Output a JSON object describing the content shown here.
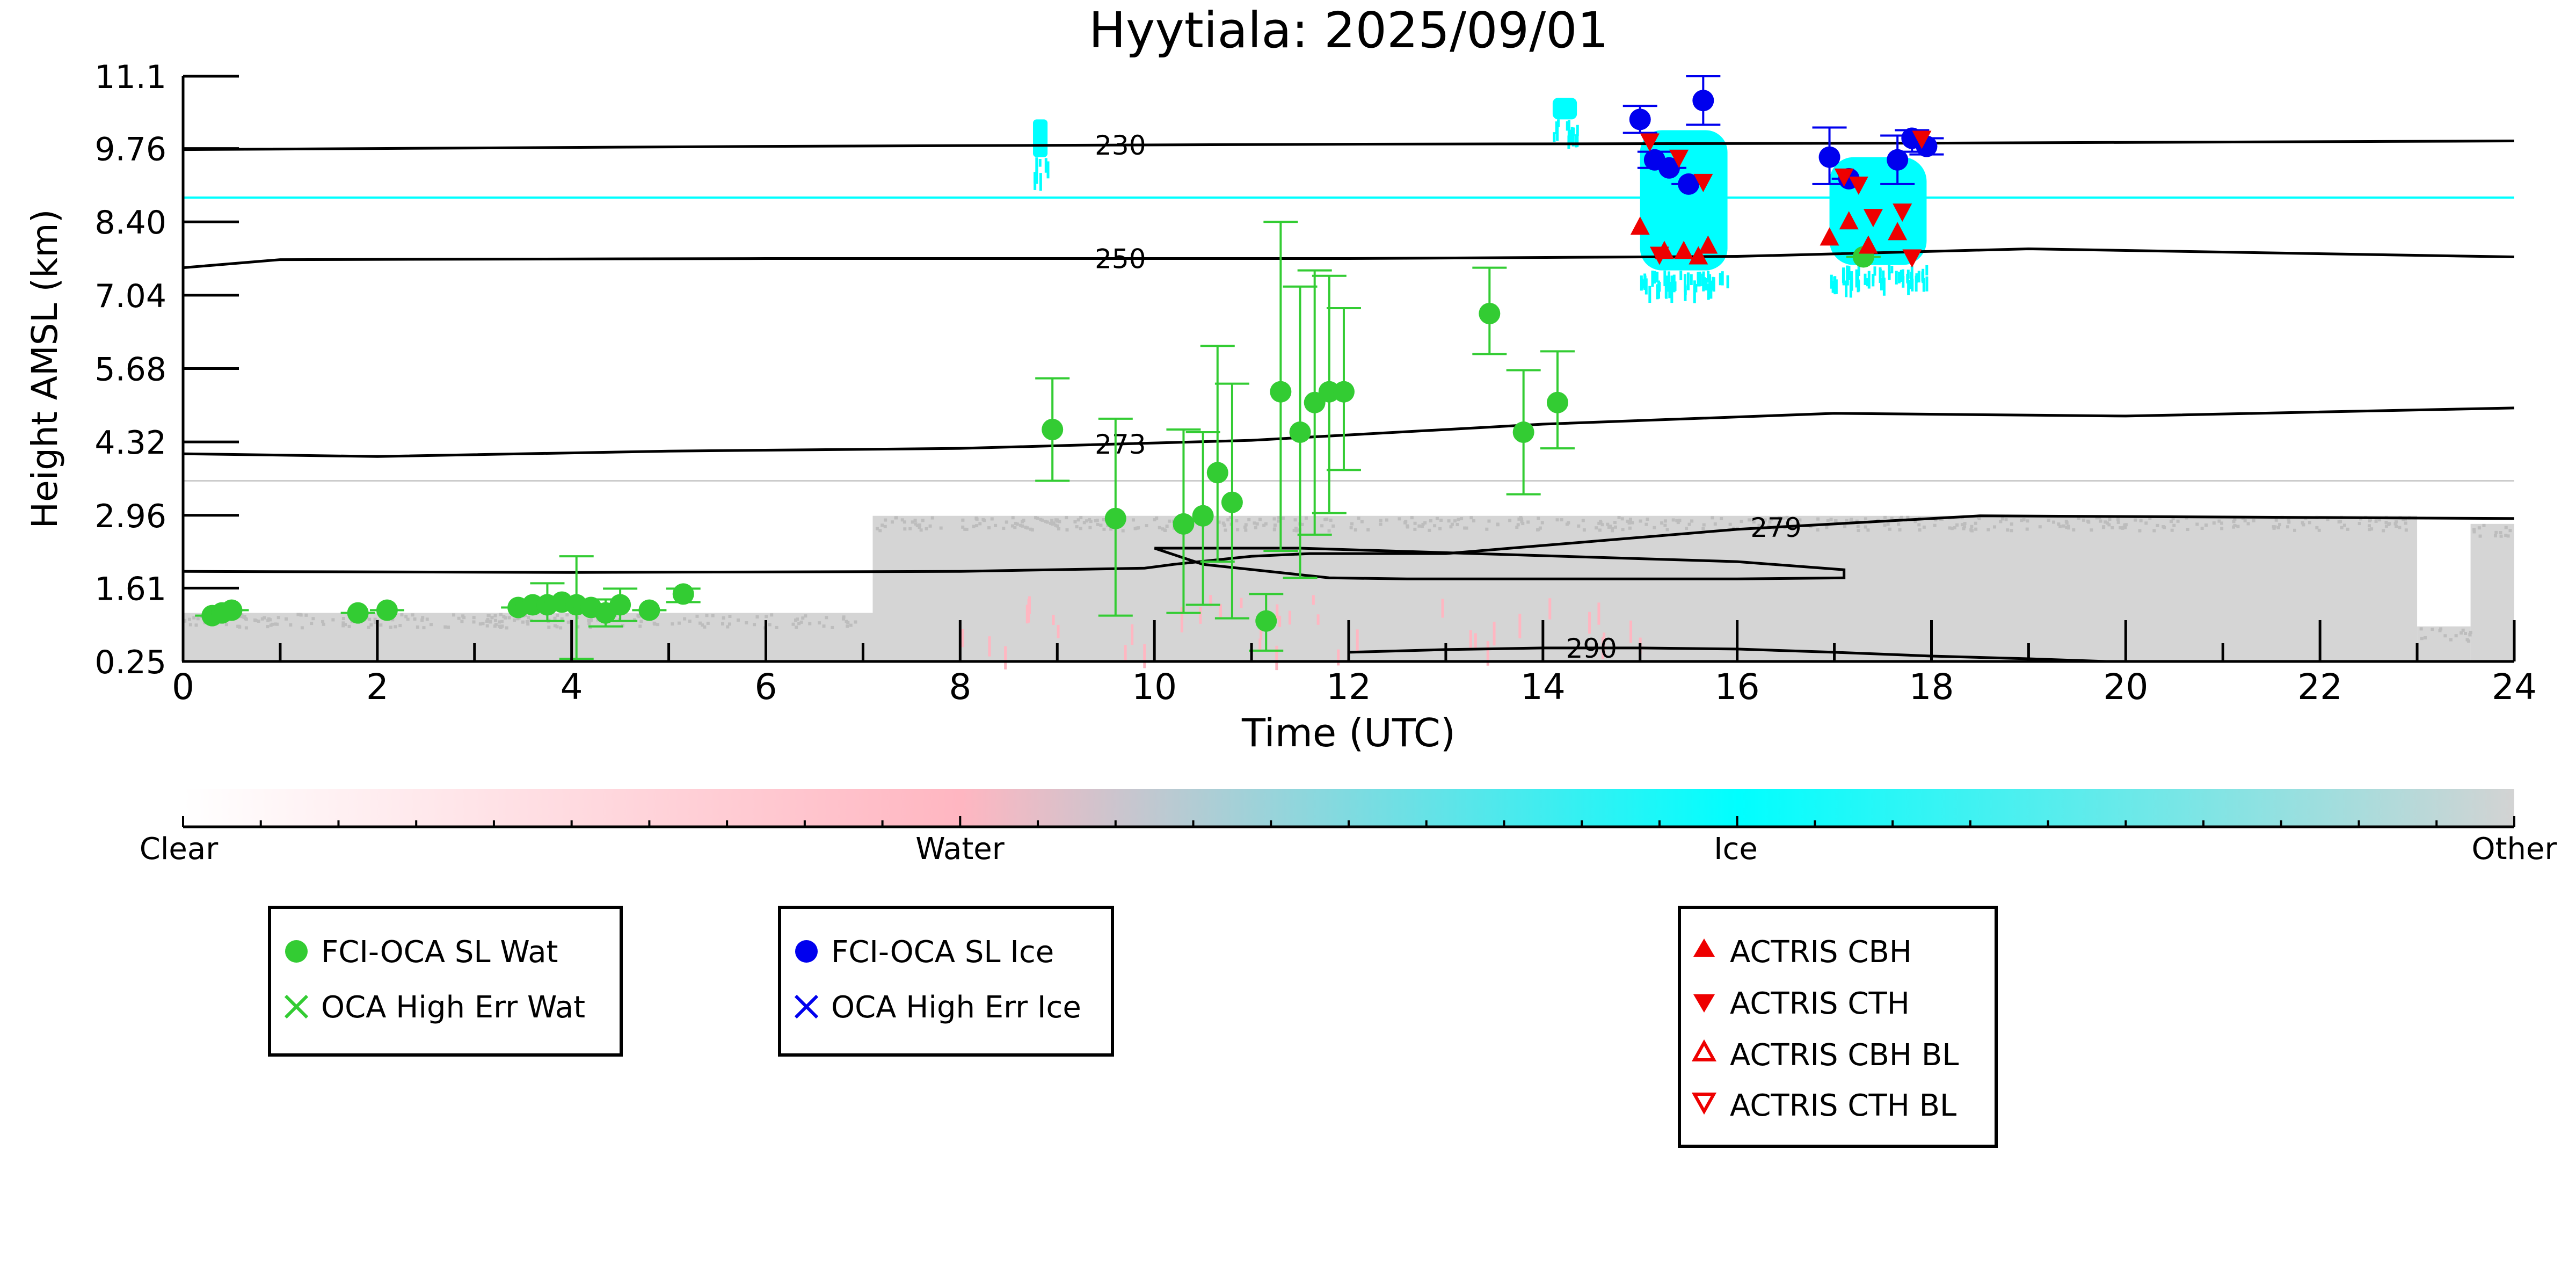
{
  "chart_data": {
    "type": "scatter",
    "title": "Hyytiala: 2025/09/01",
    "xlabel": "Time (UTC)",
    "ylabel": "Height AMSL (km)",
    "xlim": [
      0,
      24
    ],
    "ylim": [
      0.25,
      11.1
    ],
    "xticks": [
      "0",
      "2",
      "4",
      "6",
      "8",
      "10",
      "12",
      "14",
      "16",
      "18",
      "20",
      "22",
      "24"
    ],
    "yticks": [
      "0.25",
      "1.61",
      "2.96",
      "4.32",
      "5.68",
      "7.04",
      "8.40",
      "9.76",
      "11.1"
    ],
    "grid": false,
    "colorbar": {
      "labels": [
        "Clear",
        "Water",
        "Ice",
        "Other"
      ],
      "colors": [
        "#ffffff",
        "#ffb6c1",
        "#00ffff",
        "#d3d3d3"
      ]
    },
    "colors": {
      "water": "#33cc33",
      "ice": "#0000ee",
      "actris": "#ee0000",
      "cloud_ice": "#00ffff",
      "cloud_water": "#ffb6c1",
      "cloud_other": "#d3d3d3",
      "contour": "#000000"
    },
    "legends": [
      {
        "entries": [
          {
            "label": "FCI-OCA SL Wat",
            "marker": "circle-filled",
            "color": "#33cc33"
          },
          {
            "label": "OCA High Err Wat",
            "marker": "x",
            "color": "#33cc33"
          }
        ]
      },
      {
        "entries": [
          {
            "label": "FCI-OCA SL Ice",
            "marker": "circle-filled",
            "color": "#0000ee"
          },
          {
            "label": "OCA High Err Ice",
            "marker": "x",
            "color": "#0000ee"
          }
        ]
      },
      {
        "entries": [
          {
            "label": "ACTRIS CBH",
            "marker": "triangle-up-filled",
            "color": "#ee0000"
          },
          {
            "label": "ACTRIS CTH",
            "marker": "triangle-down-filled",
            "color": "#ee0000"
          },
          {
            "label": "ACTRIS CBH BL",
            "marker": "triangle-up-open",
            "color": "#ee0000"
          },
          {
            "label": "ACTRIS CTH BL",
            "marker": "triangle-down-open",
            "color": "#ee0000"
          }
        ]
      }
    ],
    "series": [
      {
        "name": "FCI-OCA SL Wat",
        "marker": "circle-filled",
        "points": [
          {
            "x": 0.3,
            "y": 1.1,
            "lo": 1.1,
            "hi": 1.1
          },
          {
            "x": 0.4,
            "y": 1.15,
            "lo": 1.15,
            "hi": 1.15
          },
          {
            "x": 0.5,
            "y": 1.2,
            "lo": 1.2,
            "hi": 1.2
          },
          {
            "x": 1.8,
            "y": 1.15,
            "lo": 1.15,
            "hi": 1.15
          },
          {
            "x": 2.1,
            "y": 1.2,
            "lo": 1.2,
            "hi": 1.2
          },
          {
            "x": 3.45,
            "y": 1.25,
            "lo": 1.25,
            "hi": 1.25
          },
          {
            "x": 3.6,
            "y": 1.3,
            "lo": 1.3,
            "hi": 1.3
          },
          {
            "x": 3.75,
            "y": 1.3,
            "lo": 1.0,
            "hi": 1.7
          },
          {
            "x": 3.9,
            "y": 1.35,
            "lo": 1.35,
            "hi": 1.35
          },
          {
            "x": 4.05,
            "y": 1.3,
            "lo": 0.3,
            "hi": 2.2
          },
          {
            "x": 4.2,
            "y": 1.25,
            "lo": 1.25,
            "hi": 1.25
          },
          {
            "x": 4.35,
            "y": 1.15,
            "lo": 0.9,
            "hi": 1.4
          },
          {
            "x": 4.5,
            "y": 1.3,
            "lo": 1.0,
            "hi": 1.6
          },
          {
            "x": 4.8,
            "y": 1.2,
            "lo": 1.2,
            "hi": 1.2
          },
          {
            "x": 5.15,
            "y": 1.5,
            "lo": 1.35,
            "hi": 1.6
          },
          {
            "x": 8.95,
            "y": 4.55,
            "lo": 3.6,
            "hi": 5.5
          },
          {
            "x": 9.6,
            "y": 2.9,
            "lo": 1.1,
            "hi": 4.75
          },
          {
            "x": 10.3,
            "y": 2.8,
            "lo": 1.15,
            "hi": 4.55
          },
          {
            "x": 10.5,
            "y": 2.95,
            "lo": 1.3,
            "hi": 4.5
          },
          {
            "x": 10.65,
            "y": 3.75,
            "lo": 2.1,
            "hi": 6.1
          },
          {
            "x": 10.8,
            "y": 3.2,
            "lo": 1.05,
            "hi": 5.4
          },
          {
            "x": 11.15,
            "y": 1.0,
            "lo": 0.45,
            "hi": 1.5
          },
          {
            "x": 11.3,
            "y": 5.25,
            "lo": 2.3,
            "hi": 8.4
          },
          {
            "x": 11.5,
            "y": 4.5,
            "lo": 1.8,
            "hi": 7.2
          },
          {
            "x": 11.65,
            "y": 5.05,
            "lo": 2.6,
            "hi": 7.5
          },
          {
            "x": 11.8,
            "y": 5.25,
            "lo": 3.0,
            "hi": 7.4
          },
          {
            "x": 11.95,
            "y": 5.25,
            "lo": 3.8,
            "hi": 6.8
          },
          {
            "x": 13.45,
            "y": 6.7,
            "lo": 5.95,
            "hi": 7.55
          },
          {
            "x": 13.8,
            "y": 4.5,
            "lo": 3.35,
            "hi": 5.65
          },
          {
            "x": 14.15,
            "y": 5.05,
            "lo": 4.2,
            "hi": 6.0
          },
          {
            "x": 17.3,
            "y": 7.75,
            "lo": 7.75,
            "hi": 7.75
          }
        ]
      },
      {
        "name": "FCI-OCA SL Ice",
        "marker": "circle-filled",
        "points": [
          {
            "x": 15.0,
            "y": 10.3,
            "lo": 10.05,
            "hi": 10.55
          },
          {
            "x": 15.15,
            "y": 9.55,
            "lo": 9.4,
            "hi": 9.7
          },
          {
            "x": 15.3,
            "y": 9.4,
            "lo": 9.4,
            "hi": 9.4
          },
          {
            "x": 15.5,
            "y": 9.1,
            "lo": 9.1,
            "hi": 9.1
          },
          {
            "x": 15.65,
            "y": 10.65,
            "lo": 10.2,
            "hi": 11.1
          },
          {
            "x": 16.95,
            "y": 9.6,
            "lo": 9.1,
            "hi": 10.15
          },
          {
            "x": 17.15,
            "y": 9.2,
            "lo": 9.2,
            "hi": 9.2
          },
          {
            "x": 17.65,
            "y": 9.55,
            "lo": 9.1,
            "hi": 10.0
          },
          {
            "x": 17.8,
            "y": 9.95,
            "lo": 9.7,
            "hi": 10.1
          },
          {
            "x": 17.95,
            "y": 9.8,
            "lo": 9.65,
            "hi": 9.95
          }
        ]
      },
      {
        "name": "ACTRIS CBH",
        "marker": "triangle-up-filled",
        "points": [
          {
            "x": 15.0,
            "y": 8.3
          },
          {
            "x": 15.25,
            "y": 7.85
          },
          {
            "x": 15.45,
            "y": 7.85
          },
          {
            "x": 15.6,
            "y": 7.75
          },
          {
            "x": 15.7,
            "y": 7.95
          },
          {
            "x": 16.95,
            "y": 8.1
          },
          {
            "x": 17.15,
            "y": 8.4
          },
          {
            "x": 17.35,
            "y": 7.95
          },
          {
            "x": 17.65,
            "y": 8.2
          }
        ]
      },
      {
        "name": "ACTRIS CTH",
        "marker": "triangle-down-filled",
        "points": [
          {
            "x": 15.1,
            "y": 9.9
          },
          {
            "x": 15.4,
            "y": 9.6
          },
          {
            "x": 15.65,
            "y": 9.15
          },
          {
            "x": 15.2,
            "y": 7.8
          },
          {
            "x": 17.1,
            "y": 9.25
          },
          {
            "x": 17.25,
            "y": 9.1
          },
          {
            "x": 17.4,
            "y": 8.5
          },
          {
            "x": 17.7,
            "y": 8.6
          },
          {
            "x": 17.8,
            "y": 7.75
          },
          {
            "x": 17.9,
            "y": 9.95
          }
        ]
      }
    ],
    "isotherms": [
      {
        "label": "230",
        "label_x": 9.65,
        "x": [
          0,
          6,
          12,
          18,
          24
        ],
        "y": [
          9.74,
          9.8,
          9.84,
          9.86,
          9.9
        ]
      },
      {
        "label": "250",
        "label_x": 9.65,
        "x": [
          0,
          1,
          6,
          12,
          16,
          19,
          24
        ],
        "y": [
          7.55,
          7.7,
          7.72,
          7.72,
          7.76,
          7.9,
          7.75
        ]
      },
      {
        "label": "273",
        "label_x": 9.65,
        "x": [
          0,
          2,
          5,
          8,
          11,
          14,
          17,
          20,
          24
        ],
        "y": [
          4.1,
          4.05,
          4.15,
          4.2,
          4.35,
          4.65,
          4.85,
          4.8,
          4.95
        ]
      },
      {
        "label": "279",
        "label_x": 16.4,
        "x": [
          0,
          4,
          8,
          9.9,
          10.2,
          11,
          11.6,
          13,
          16,
          18,
          18.5,
          24
        ],
        "y": [
          1.92,
          1.9,
          1.92,
          1.98,
          2.05,
          2.2,
          2.25,
          2.25,
          2.7,
          2.9,
          2.95,
          2.9
        ]
      },
      {
        "label": "290",
        "label_x": 14.5,
        "x": [
          12,
          13,
          14,
          15,
          16,
          17,
          18,
          19,
          19.8
        ],
        "y": [
          0.42,
          0.47,
          0.5,
          0.5,
          0.48,
          0.42,
          0.35,
          0.3,
          0.25
        ]
      }
    ],
    "isotherm_loop": {
      "x": [
        10.0,
        11.5,
        13.3,
        16.0,
        17.1,
        17.1,
        16.0,
        12.6,
        11.8,
        10.5,
        10.0
      ],
      "y": [
        2.35,
        2.35,
        2.25,
        2.1,
        1.95,
        1.8,
        1.78,
        1.78,
        1.8,
        2.05,
        2.35
      ]
    },
    "cloud_classification": {
      "ice_line_y": 8.85,
      "ice_patches": [
        {
          "x": [
            15.0,
            15.9
          ],
          "y": [
            7.5,
            10.1
          ]
        },
        {
          "x": [
            16.95,
            17.95
          ],
          "y": [
            7.6,
            9.6
          ]
        },
        {
          "x": [
            8.75,
            8.9
          ],
          "y": [
            9.6,
            10.3
          ]
        },
        {
          "x": [
            14.1,
            14.35
          ],
          "y": [
            10.3,
            10.7
          ]
        }
      ],
      "other_regions": [
        {
          "x": [
            0.0,
            7.1
          ],
          "y": [
            0.25,
            1.15
          ]
        },
        {
          "x": [
            7.1,
            23.0
          ],
          "y": [
            0.25,
            2.95
          ]
        },
        {
          "x": [
            23.0,
            23.55
          ],
          "y": [
            0.25,
            0.9
          ]
        },
        {
          "x": [
            23.55,
            24.0
          ],
          "y": [
            0.25,
            2.8
          ]
        }
      ],
      "faint_line_y": 3.6
    }
  }
}
